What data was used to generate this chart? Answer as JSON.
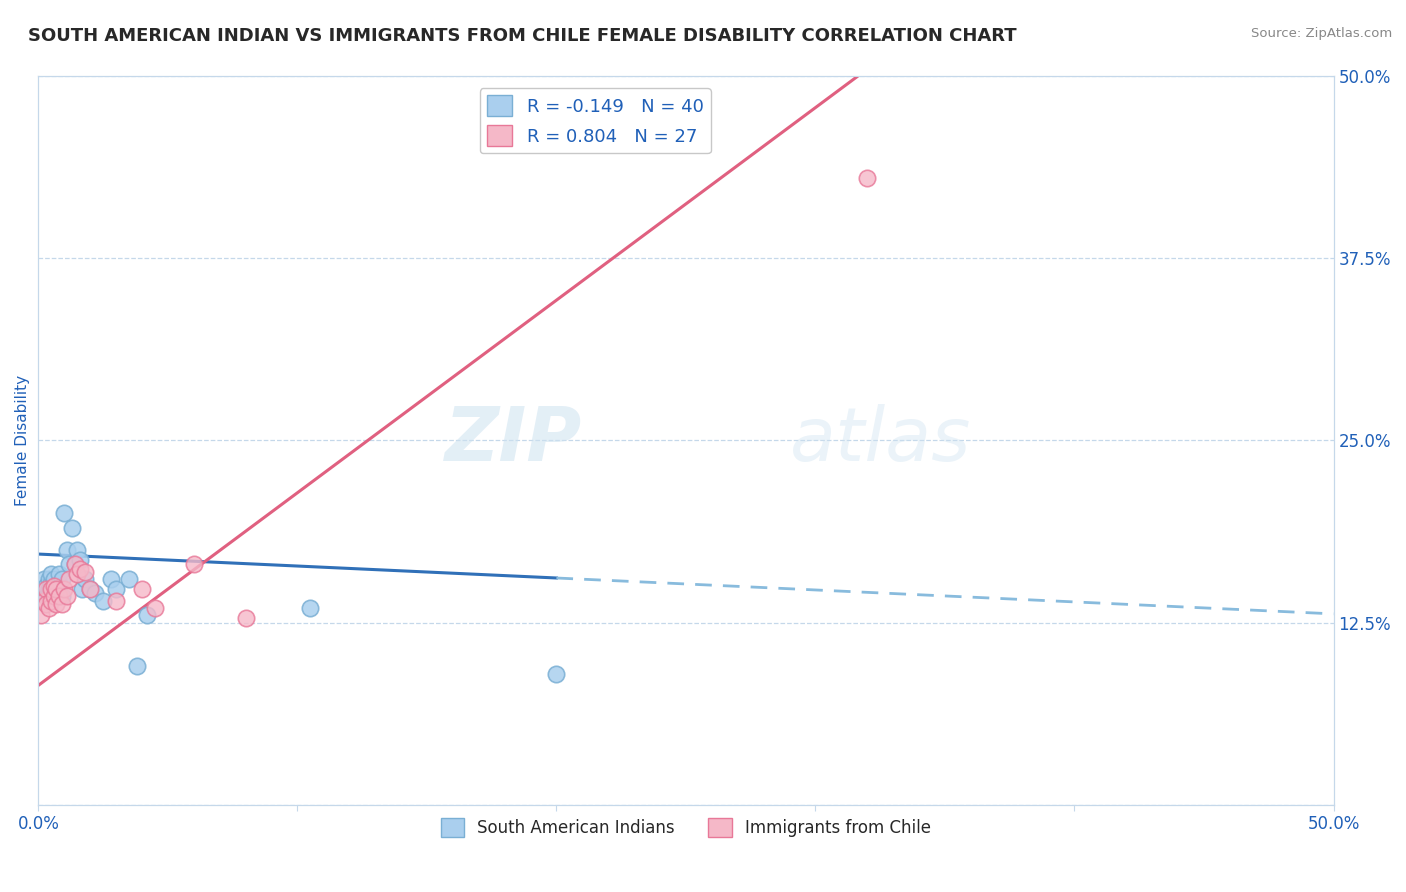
{
  "title": "SOUTH AMERICAN INDIAN VS IMMIGRANTS FROM CHILE FEMALE DISABILITY CORRELATION CHART",
  "source": "Source: ZipAtlas.com",
  "ylabel": "Female Disability",
  "legend_label1": "South American Indians",
  "legend_label2": "Immigrants from Chile",
  "R1": -0.149,
  "N1": 40,
  "R2": 0.804,
  "N2": 27,
  "blue_scatter_face": "#aacfee",
  "blue_scatter_edge": "#7aafd4",
  "pink_scatter_face": "#f5b8c8",
  "pink_scatter_edge": "#e87898",
  "line_blue_solid": "#3070b8",
  "line_blue_dash": "#88bbdd",
  "line_pink": "#e06080",
  "right_yticks": [
    0.0,
    0.125,
    0.25,
    0.375,
    0.5
  ],
  "right_yticklabels": [
    "",
    "12.5%",
    "25.0%",
    "37.5%",
    "50.0%"
  ],
  "watermark_zip": "ZIP",
  "watermark_atlas": "atlas",
  "blue_x": [
    0.001,
    0.002,
    0.002,
    0.003,
    0.003,
    0.004,
    0.004,
    0.004,
    0.005,
    0.005,
    0.005,
    0.006,
    0.006,
    0.006,
    0.007,
    0.007,
    0.008,
    0.008,
    0.008,
    0.009,
    0.009,
    0.01,
    0.011,
    0.012,
    0.013,
    0.014,
    0.015,
    0.016,
    0.017,
    0.018,
    0.02,
    0.022,
    0.025,
    0.028,
    0.03,
    0.035,
    0.038,
    0.042,
    0.105,
    0.2
  ],
  "blue_y": [
    0.145,
    0.148,
    0.155,
    0.143,
    0.15,
    0.14,
    0.148,
    0.155,
    0.145,
    0.152,
    0.158,
    0.145,
    0.15,
    0.155,
    0.143,
    0.148,
    0.145,
    0.152,
    0.158,
    0.143,
    0.155,
    0.2,
    0.175,
    0.165,
    0.19,
    0.165,
    0.175,
    0.168,
    0.148,
    0.155,
    0.148,
    0.145,
    0.14,
    0.155,
    0.148,
    0.155,
    0.095,
    0.13,
    0.135,
    0.09
  ],
  "pink_x": [
    0.001,
    0.002,
    0.003,
    0.003,
    0.004,
    0.005,
    0.005,
    0.006,
    0.006,
    0.007,
    0.007,
    0.008,
    0.009,
    0.01,
    0.011,
    0.012,
    0.014,
    0.015,
    0.016,
    0.018,
    0.02,
    0.03,
    0.04,
    0.045,
    0.06,
    0.08,
    0.32
  ],
  "pink_y": [
    0.13,
    0.14,
    0.148,
    0.138,
    0.135,
    0.14,
    0.148,
    0.143,
    0.15,
    0.138,
    0.148,
    0.143,
    0.138,
    0.148,
    0.143,
    0.155,
    0.165,
    0.158,
    0.162,
    0.16,
    0.148,
    0.14,
    0.148,
    0.135,
    0.165,
    0.128,
    0.43
  ],
  "blue_line_intercept": 0.172,
  "blue_line_slope": -0.082,
  "pink_line_intercept": 0.082,
  "pink_line_slope": 1.32
}
